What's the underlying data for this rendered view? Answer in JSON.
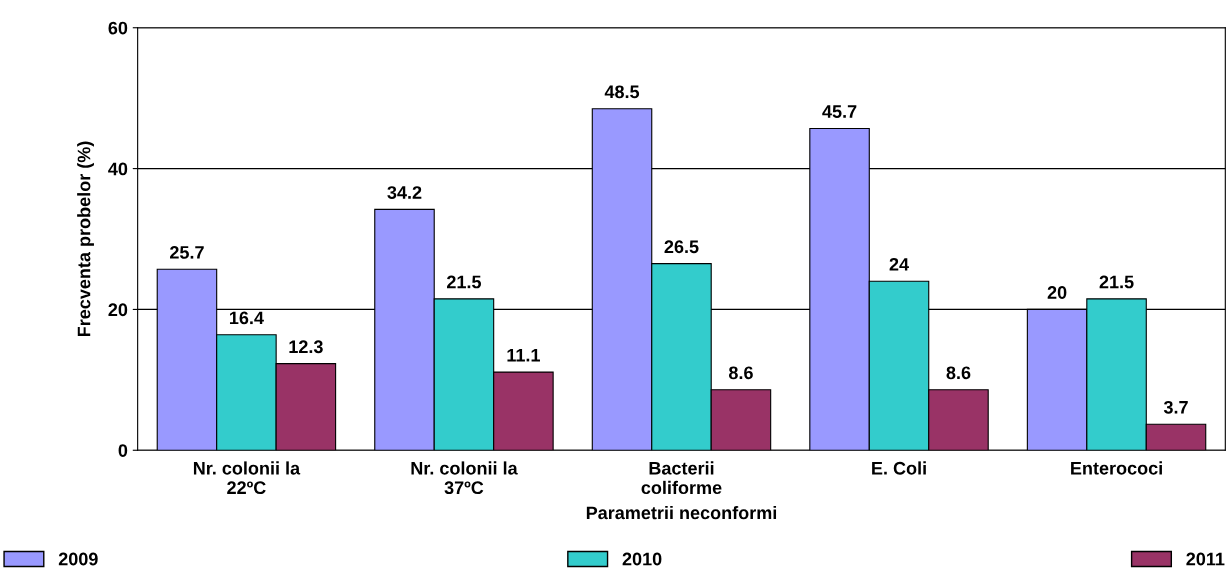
{
  "chart_data": {
    "type": "bar",
    "xlabel": "Parametrii neconformi",
    "ylabel": "Frecventa probelor (%)",
    "categories": [
      "Nr. colonii la\n22ºC",
      "Nr. colonii la\n37ºC",
      "Bacterii\ncoliforme",
      "E. Coli",
      "Enterococi"
    ],
    "series": [
      {
        "name": "2009",
        "color": "#9999ff",
        "values": [
          25.7,
          34.2,
          48.5,
          45.7,
          20
        ]
      },
      {
        "name": "2010",
        "color": "#33cccc",
        "values": [
          16.4,
          21.5,
          26.5,
          24,
          21.5
        ]
      },
      {
        "name": "2011",
        "color": "#993366",
        "values": [
          12.3,
          11.1,
          8.6,
          8.6,
          3.7
        ]
      }
    ],
    "ylim": [
      0,
      60
    ],
    "yticks": [
      0,
      20,
      40,
      60
    ],
    "grid": "y",
    "legend": "bottom",
    "data_labels": true
  }
}
